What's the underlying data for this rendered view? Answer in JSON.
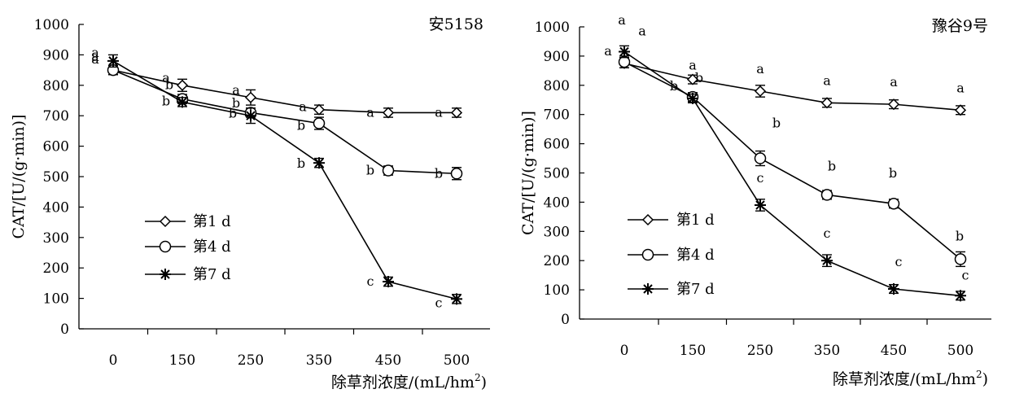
{
  "chart_data": [
    {
      "type": "line",
      "title": "安5158",
      "xlabel": "除草剂浓度/(mL/hm²)",
      "xlabel_main": "除草剂浓度/(mL/hm",
      "xlabel_sup": "2",
      "xlabel_tail": ")",
      "ylabel": "CAT/[U/(g·min)]",
      "categories": [
        "0",
        "150",
        "250",
        "350",
        "450",
        "500"
      ],
      "ylim": [
        0,
        1000
      ],
      "yticks": [
        "0",
        "100",
        "200",
        "300",
        "400",
        "500",
        "600",
        "700",
        "800",
        "900",
        "1000"
      ],
      "grid": false,
      "legend_position": "lower-left",
      "series": [
        {
          "name": "第1 d",
          "marker": "diamond",
          "values": [
            850,
            800,
            760,
            720,
            710,
            710
          ],
          "error": [
            15,
            20,
            25,
            15,
            15,
            15
          ],
          "labels": [
            "a",
            "a",
            "a",
            "a",
            "a",
            "a"
          ]
        },
        {
          "name": "第4 d",
          "marker": "circle",
          "values": [
            850,
            755,
            710,
            675,
            520,
            510
          ],
          "error": [
            15,
            15,
            15,
            20,
            15,
            20
          ],
          "labels": [
            "a",
            "b",
            "b",
            "b",
            "b",
            "b"
          ]
        },
        {
          "name": "第7 d",
          "marker": "asterisk",
          "values": [
            880,
            745,
            700,
            545,
            155,
            98
          ],
          "error": [
            20,
            15,
            25,
            15,
            15,
            15
          ],
          "labels": [
            "a",
            "b",
            "b",
            "b",
            "c",
            "c"
          ]
        }
      ]
    },
    {
      "type": "line",
      "title": "豫谷9号",
      "xlabel": "除草剂浓度/(mL/hm²)",
      "xlabel_main": "除草剂浓度/(mL/hm",
      "xlabel_sup": "2",
      "xlabel_tail": ")",
      "ylabel": "CAT/[U/(g·min)]",
      "categories": [
        "0",
        "150",
        "250",
        "350",
        "450",
        "500"
      ],
      "ylim": [
        0,
        1000
      ],
      "yticks": [
        "0",
        "100",
        "200",
        "300",
        "400",
        "500",
        "600",
        "700",
        "800",
        "900",
        "1000"
      ],
      "grid": false,
      "legend_position": "lower-left",
      "series": [
        {
          "name": "第1 d",
          "marker": "diamond",
          "values": [
            875,
            820,
            780,
            740,
            735,
            715
          ],
          "error": [
            15,
            15,
            20,
            15,
            15,
            15
          ],
          "labels": [
            "a",
            "a",
            "a",
            "a",
            "a",
            "a"
          ]
        },
        {
          "name": "第4 d",
          "marker": "circle",
          "values": [
            880,
            760,
            550,
            425,
            395,
            205
          ],
          "error": [
            20,
            15,
            25,
            15,
            15,
            25
          ],
          "labels": [
            "a",
            "b",
            "b",
            "b",
            "b",
            "b"
          ]
        },
        {
          "name": "第7 d",
          "marker": "asterisk",
          "values": [
            915,
            755,
            390,
            200,
            103,
            80
          ],
          "error": [
            20,
            15,
            20,
            20,
            15,
            15
          ],
          "labels": [
            "a",
            "b",
            "c",
            "c",
            "c",
            "c"
          ]
        }
      ]
    }
  ]
}
